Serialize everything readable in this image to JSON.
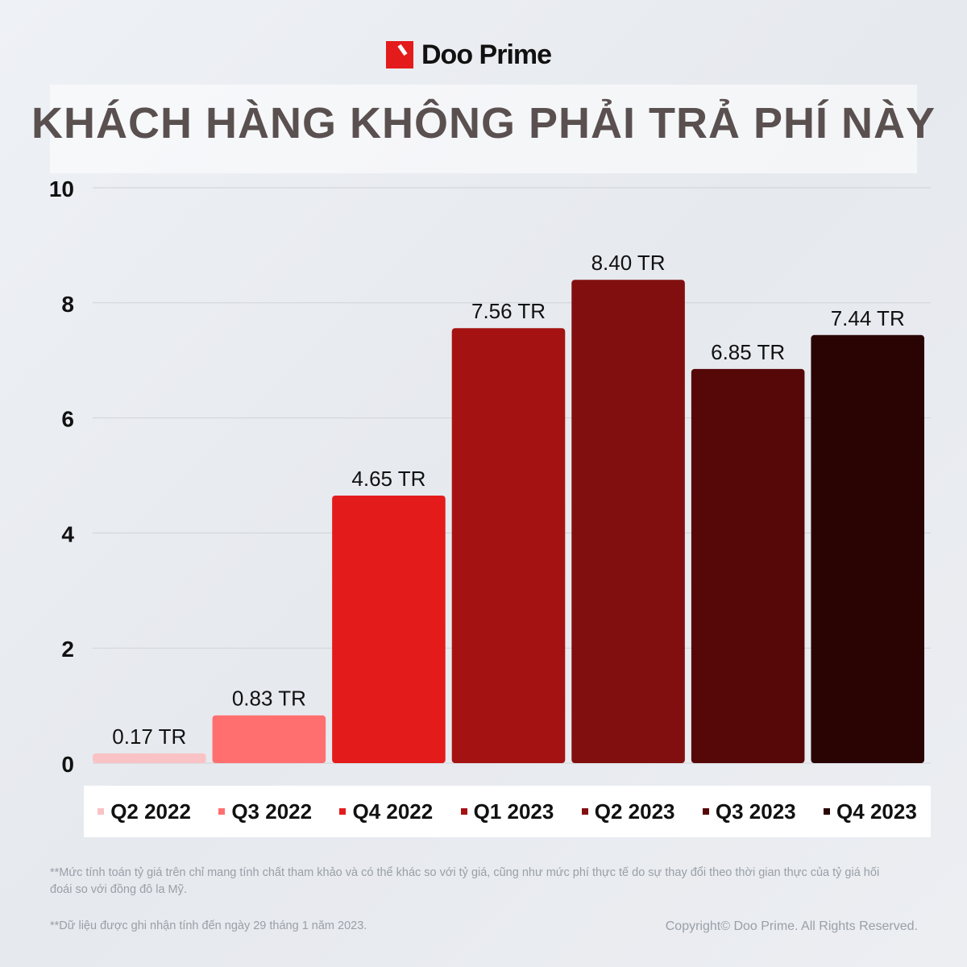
{
  "brand": {
    "name": "Doo Prime",
    "accent": "#e41b1b"
  },
  "chart_data": {
    "type": "bar",
    "title": "KHÁCH HÀNG KHÔNG PHẢI TRẢ PHÍ NÀY",
    "categories": [
      "Q2 2022",
      "Q3 2022",
      "Q4 2022",
      "Q1 2023",
      "Q2 2023",
      "Q3 2023",
      "Q4 2023"
    ],
    "values": [
      0.17,
      0.83,
      4.65,
      7.56,
      8.4,
      6.85,
      7.44
    ],
    "data_labels": [
      "0.17 TR",
      "0.83 TR",
      "4.65 TR",
      "7.56 TR",
      "8.40 TR",
      "6.85 TR",
      "7.44 TR"
    ],
    "colors": [
      "#f9c3c5",
      "#ff6f6f",
      "#e41b1b",
      "#a51212",
      "#820f0f",
      "#560808",
      "#2a0303"
    ],
    "yticks": [
      "0",
      "2",
      "4",
      "6",
      "8",
      "10"
    ],
    "ylim": [
      0,
      10
    ],
    "grid": true,
    "legend": "bottom"
  },
  "notes": {
    "note1": "**Mức tính toán tỷ giá trên chỉ mang tính chất tham khảo và có thể khác so với tỷ giá, cũng như mức phí thực tế do sự thay đổi theo thời gian thực của tỷ giá hối đoái so với đồng đô la Mỹ.",
    "note2": "**Dữ liệu được ghi nhận tính đến ngày 29 tháng 1 năm 2023.",
    "copyright": "Copyright© Doo Prime. All Rights Reserved."
  }
}
